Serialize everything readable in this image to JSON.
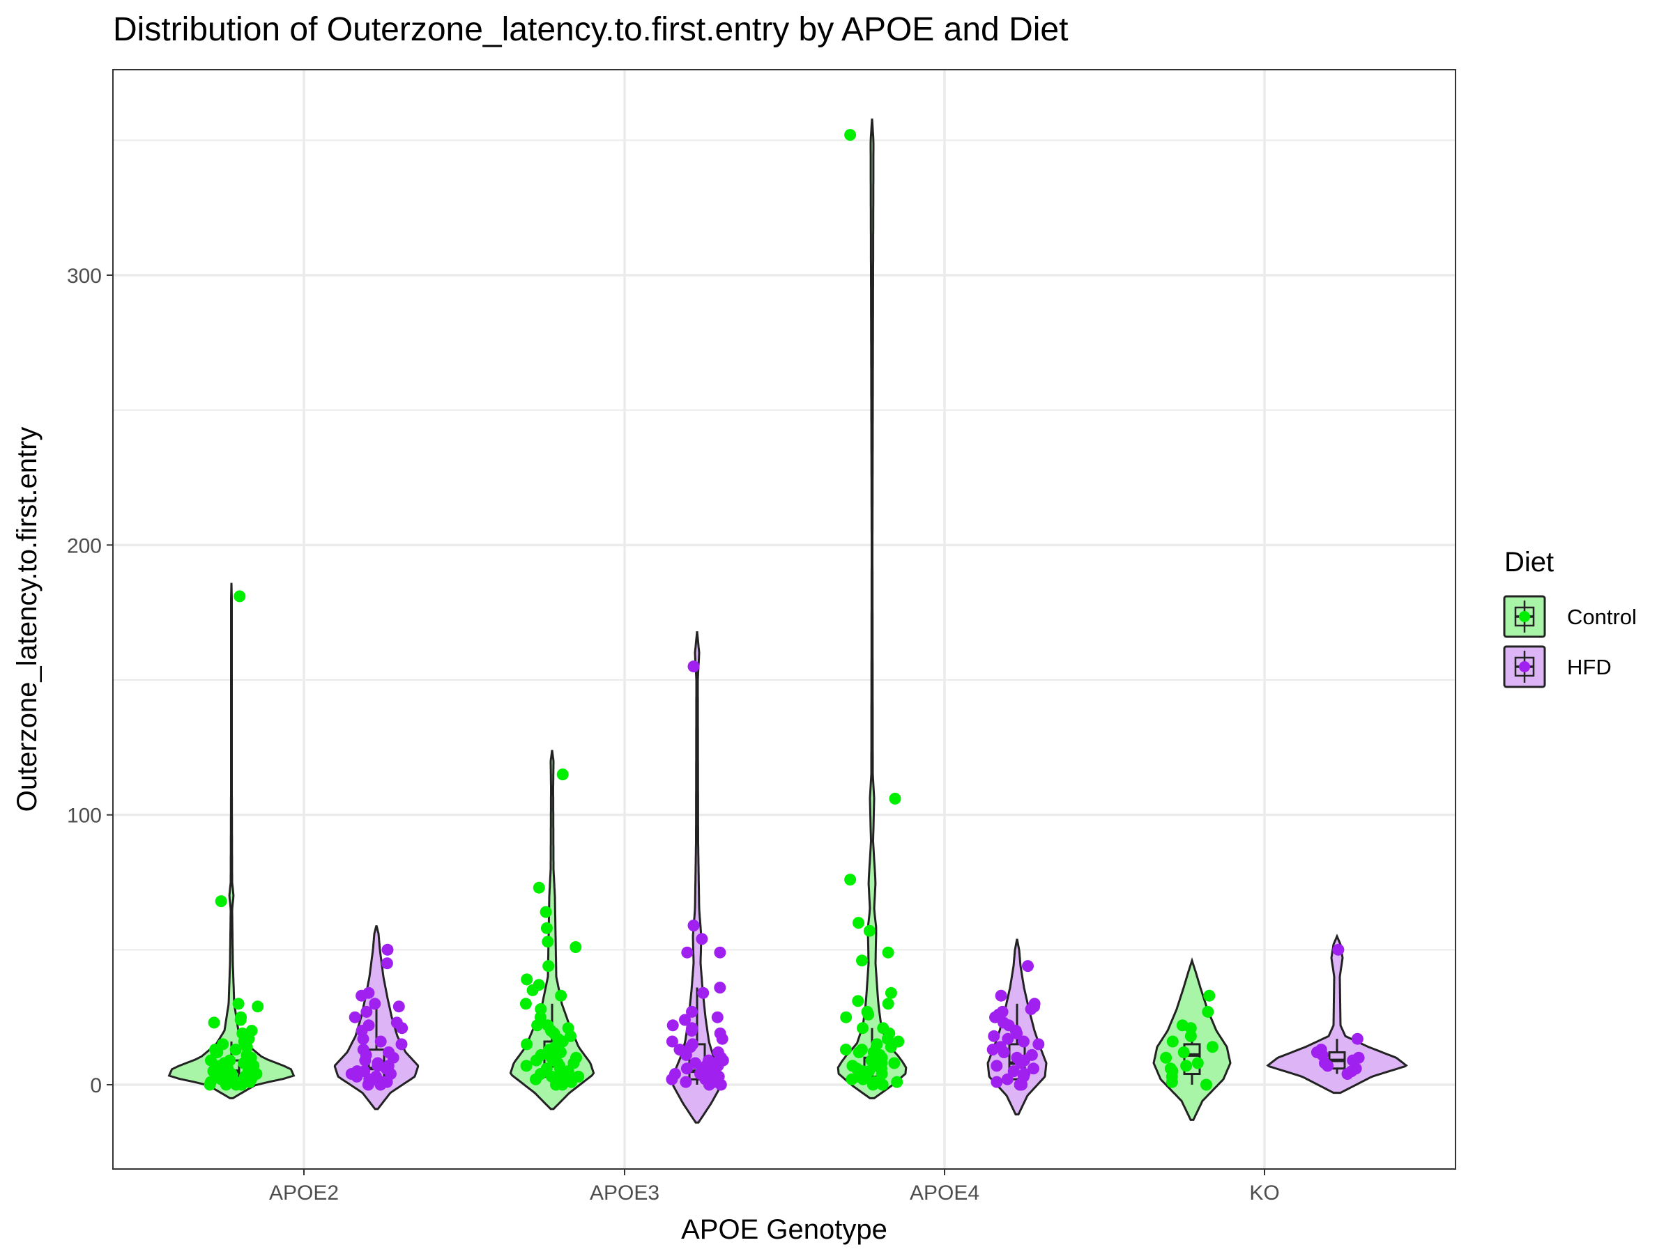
{
  "chart_data": {
    "type": "violin",
    "title": "Distribution of Outerzone_latency.to.first.entry by APOE and Diet",
    "xlabel": "APOE Genotype",
    "ylabel": "Outerzone_latency.to.first.entry",
    "categories": [
      "APOE2",
      "APOE3",
      "APOE4",
      "KO"
    ],
    "yticks": [
      0,
      100,
      200,
      300
    ],
    "ylim": [
      -31,
      360
    ],
    "grid": true,
    "legend": {
      "title": "Diet",
      "position": "right",
      "entries": [
        {
          "label": "Control",
          "color": "#00ee00",
          "fill": "#a8f5a8"
        },
        {
          "label": "HFD",
          "color": "#a020f0",
          "fill": "#ddb5f7"
        }
      ]
    },
    "series": [
      {
        "name": "Control",
        "groups": [
          {
            "category": "APOE2",
            "violin": {
              "min": -5,
              "max": 186,
              "profile": [
                [
                  -5,
                  0.02
                ],
                [
                  0,
                  0.35
                ],
                [
                  3,
                  0.9
                ],
                [
                  6,
                  0.85
                ],
                [
                  10,
                  0.45
                ],
                [
                  15,
                  0.22
                ],
                [
                  20,
                  0.1
                ],
                [
                  30,
                  0.04
                ],
                [
                  45,
                  0.02
                ],
                [
                  65,
                  0.01
                ],
                [
                  70,
                  0.03
                ],
                [
                  75,
                  0.01
                ],
                [
                  110,
                  0.005
                ],
                [
                  180,
                  0.005
                ],
                [
                  186,
                  0
                ]
              ]
            },
            "box": {
              "q1": 2,
              "median": 5,
              "q3": 9,
              "whisker_low": 0,
              "whisker_high": 16
            },
            "points": [
              181,
              68,
              30,
              29,
              25,
              24,
              23,
              20,
              19,
              17,
              16,
              15,
              14,
              13,
              13,
              12,
              12,
              11,
              10,
              10,
              9,
              9,
              8,
              8,
              7,
              7,
              7,
              6,
              6,
              6,
              5,
              5,
              5,
              5,
              4,
              4,
              4,
              3,
              3,
              3,
              3,
              2,
              2,
              2,
              2,
              1,
              1,
              1,
              0,
              0,
              0,
              0
            ]
          },
          {
            "category": "APOE3",
            "violin": {
              "min": -9,
              "max": 124,
              "profile": [
                [
                  -9,
                  0.02
                ],
                [
                  -3,
                  0.25
                ],
                [
                  4,
                  0.6
                ],
                [
                  8,
                  0.55
                ],
                [
                  14,
                  0.38
                ],
                [
                  22,
                  0.25
                ],
                [
                  30,
                  0.14
                ],
                [
                  40,
                  0.06
                ],
                [
                  55,
                  0.05
                ],
                [
                  70,
                  0.04
                ],
                [
                  80,
                  0.02
                ],
                [
                  110,
                  0.015
                ],
                [
                  120,
                  0.02
                ],
                [
                  124,
                  0
                ]
              ]
            },
            "box": {
              "q1": 3,
              "median": 7,
              "q3": 16,
              "whisker_low": 0,
              "whisker_high": 30
            },
            "points": [
              115,
              73,
              64,
              58,
              53,
              51,
              44,
              39,
              37,
              35,
              33,
              30,
              28,
              25,
              22,
              22,
              21,
              20,
              19,
              18,
              17,
              16,
              15,
              14,
              13,
              12,
              12,
              11,
              10,
              10,
              9,
              9,
              8,
              8,
              7,
              7,
              6,
              6,
              5,
              5,
              4,
              4,
              3,
              3,
              2,
              2,
              1,
              1,
              0,
              0
            ]
          },
          {
            "category": "APOE4",
            "violin": {
              "min": -5,
              "max": 358,
              "profile": [
                [
                  -5,
                  0.03
                ],
                [
                  0,
                  0.3
                ],
                [
                  5,
                  0.52
                ],
                [
                  10,
                  0.4
                ],
                [
                  15,
                  0.22
                ],
                [
                  22,
                  0.13
                ],
                [
                  30,
                  0.09
                ],
                [
                  45,
                  0.05
                ],
                [
                  58,
                  0.06
                ],
                [
                  65,
                  0.03
                ],
                [
                  75,
                  0.05
                ],
                [
                  90,
                  0.015
                ],
                [
                  106,
                  0.03
                ],
                [
                  115,
                  0.01
                ],
                [
                  200,
                  0.005
                ],
                [
                  350,
                  0.02
                ],
                [
                  358,
                  0
                ]
              ]
            },
            "box": {
              "q1": 3,
              "median": 6,
              "q3": 10,
              "whisker_low": 0,
              "whisker_high": 21
            },
            "points": [
              352,
              106,
              76,
              60,
              57,
              49,
              46,
              34,
              31,
              30,
              27,
              26,
              25,
              21,
              21,
              19,
              17,
              16,
              15,
              14,
              13,
              13,
              12,
              12,
              11,
              10,
              10,
              9,
              9,
              8,
              8,
              7,
              7,
              6,
              6,
              5,
              5,
              4,
              4,
              3,
              3,
              2,
              2,
              1,
              1,
              0,
              0
            ]
          },
          {
            "category": "KO",
            "violin": {
              "min": -13,
              "max": 46,
              "profile": [
                [
                  -13,
                  0.02
                ],
                [
                  -6,
                  0.15
                ],
                [
                  2,
                  0.45
                ],
                [
                  8,
                  0.55
                ],
                [
                  14,
                  0.5
                ],
                [
                  20,
                  0.35
                ],
                [
                  28,
                  0.22
                ],
                [
                  36,
                  0.12
                ],
                [
                  42,
                  0.05
                ],
                [
                  46,
                  0
                ]
              ]
            },
            "box": {
              "q1": 4,
              "median": 11,
              "q3": 15,
              "whisker_low": 0,
              "whisker_high": 21
            },
            "points": [
              33,
              27,
              22,
              21,
              18,
              16,
              14,
              12,
              10,
              8,
              7,
              6,
              5,
              3,
              1,
              0
            ]
          }
        ]
      },
      {
        "name": "HFD",
        "groups": [
          {
            "category": "APOE2",
            "violin": {
              "min": -9,
              "max": 59,
              "profile": [
                [
                  -9,
                  0.02
                ],
                [
                  -3,
                  0.2
                ],
                [
                  3,
                  0.55
                ],
                [
                  7,
                  0.6
                ],
                [
                  12,
                  0.42
                ],
                [
                  18,
                  0.3
                ],
                [
                  25,
                  0.22
                ],
                [
                  32,
                  0.16
                ],
                [
                  40,
                  0.1
                ],
                [
                  50,
                  0.05
                ],
                [
                  56,
                  0.03
                ],
                [
                  59,
                  0
                ]
              ]
            },
            "box": {
              "q1": 2,
              "median": 6,
              "q3": 13,
              "whisker_low": 0,
              "whisker_high": 28
            },
            "points": [
              50,
              45,
              34,
              33,
              30,
              29,
              27,
              25,
              23,
              22,
              21,
              20,
              17,
              16,
              15,
              13,
              12,
              11,
              10,
              9,
              8,
              7,
              7,
              6,
              6,
              5,
              5,
              4,
              4,
              3,
              3,
              2,
              2,
              1,
              1,
              0,
              0
            ]
          },
          {
            "category": "APOE3",
            "violin": {
              "min": -14,
              "max": 168,
              "profile": [
                [
                  -14,
                  0.02
                ],
                [
                  -7,
                  0.2
                ],
                [
                  0,
                  0.35
                ],
                [
                  5,
                  0.32
                ],
                [
                  10,
                  0.24
                ],
                [
                  16,
                  0.17
                ],
                [
                  25,
                  0.12
                ],
                [
                  35,
                  0.08
                ],
                [
                  45,
                  0.05
                ],
                [
                  55,
                  0.06
                ],
                [
                  65,
                  0.03
                ],
                [
                  90,
                  0.015
                ],
                [
                  150,
                  0.01
                ],
                [
                  160,
                  0.03
                ],
                [
                  168,
                  0
                ]
              ]
            },
            "box": {
              "q1": 2,
              "median": 5,
              "q3": 15,
              "whisker_low": 0,
              "whisker_high": 36
            },
            "points": [
              155,
              59,
              54,
              49,
              49,
              36,
              34,
              27,
              25,
              24,
              22,
              21,
              20,
              19,
              17,
              16,
              15,
              14,
              13,
              12,
              11,
              10,
              9,
              9,
              8,
              8,
              7,
              7,
              6,
              6,
              5,
              5,
              4,
              4,
              3,
              3,
              2,
              2,
              1,
              1,
              0,
              0
            ]
          },
          {
            "category": "KO",
            "violin": {
              "min": -3,
              "max": 55,
              "profile": [
                [
                  -3,
                  0.05
                ],
                [
                  3,
                  0.5
                ],
                [
                  7,
                  1.0
                ],
                [
                  10,
                  0.85
                ],
                [
                  14,
                  0.45
                ],
                [
                  18,
                  0.12
                ],
                [
                  22,
                  0.05
                ],
                [
                  40,
                  0.04
                ],
                [
                  47,
                  0.08
                ],
                [
                  52,
                  0.05
                ],
                [
                  55,
                  0
                ]
              ]
            },
            "box": {
              "q1": 6,
              "median": 9,
              "q3": 12,
              "whisker_low": 4,
              "whisker_high": 17
            },
            "points": [
              50,
              17,
              13,
              12,
              11,
              10,
              9,
              8,
              7,
              6,
              5,
              4
            ]
          },
          {
            "category": "APOE4",
            "violin": {
              "min": -11,
              "max": 54,
              "profile": [
                [
                  -11,
                  0.02
                ],
                [
                  -4,
                  0.15
                ],
                [
                  3,
                  0.4
                ],
                [
                  8,
                  0.42
                ],
                [
                  14,
                  0.33
                ],
                [
                  20,
                  0.25
                ],
                [
                  28,
                  0.17
                ],
                [
                  36,
                  0.1
                ],
                [
                  44,
                  0.05
                ],
                [
                  50,
                  0.03
                ],
                [
                  54,
                  0
                ]
              ]
            },
            "box": {
              "q1": 2,
              "median": 8,
              "q3": 15,
              "whisker_low": 0,
              "whisker_high": 30
            },
            "points": [
              44,
              33,
              30,
              29,
              28,
              27,
              26,
              25,
              23,
              22,
              20,
              19,
              18,
              17,
              16,
              15,
              14,
              13,
              12,
              11,
              10,
              9,
              8,
              7,
              6,
              5,
              4,
              3,
              2,
              1,
              0,
              0
            ]
          }
        ]
      }
    ]
  }
}
